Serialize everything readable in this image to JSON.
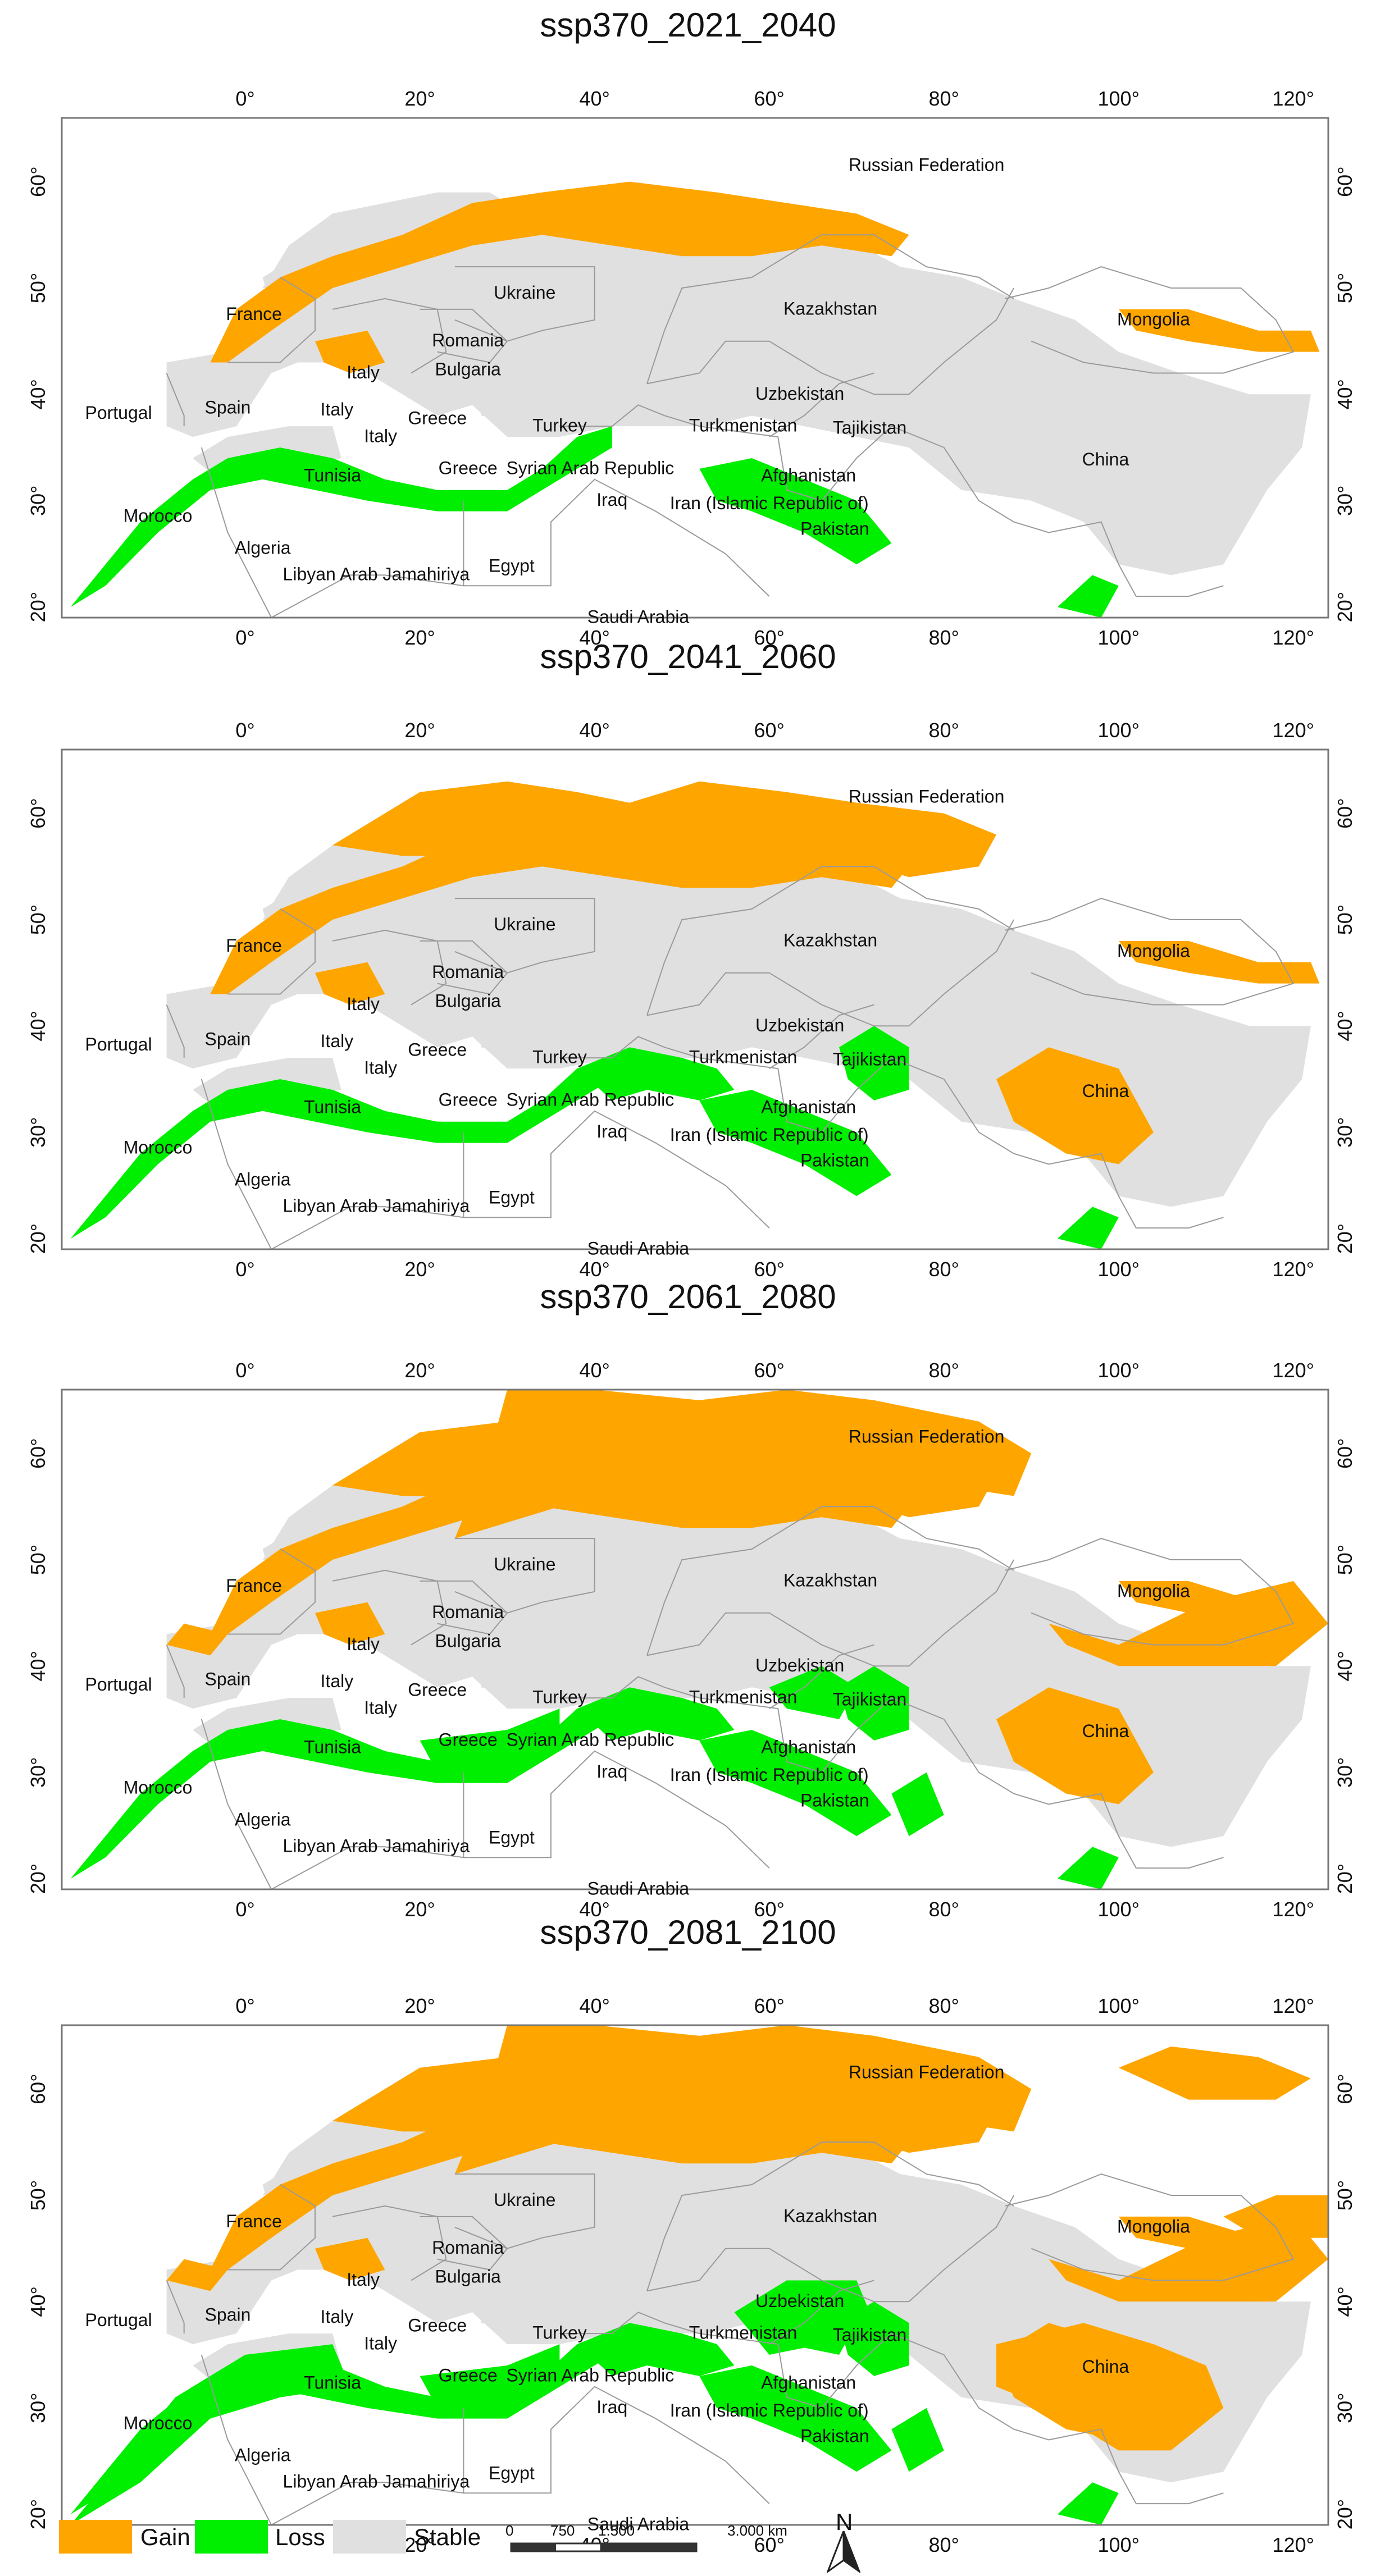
{
  "colors": {
    "gain": "#FFA500",
    "loss": "#00EE00",
    "stable": "#E0E0E0",
    "border": "#9a9a9a",
    "frame": "#777777"
  },
  "axes": {
    "lon_ticks": [
      "0",
      "20",
      "40",
      "60",
      "80",
      "100",
      "120"
    ],
    "lat_ticks": [
      "20",
      "30",
      "40",
      "50",
      "60"
    ],
    "lon_range": [
      -21,
      124
    ],
    "lat_range": [
      19,
      66
    ],
    "tick_suffix": "°"
  },
  "countries": [
    {
      "label": "Russian Federation",
      "lon": 78,
      "lat": 61
    },
    {
      "label": "Ukraine",
      "lon": 32,
      "lat": 49
    },
    {
      "label": "Kazakhstan",
      "lon": 67,
      "lat": 47.5
    },
    {
      "label": "Mongolia",
      "lon": 104,
      "lat": 46.5
    },
    {
      "label": "France",
      "lon": 1,
      "lat": 47
    },
    {
      "label": "Romania",
      "lon": 25.5,
      "lat": 44.5
    },
    {
      "label": "Bulgaria",
      "lon": 25.5,
      "lat": 41.8
    },
    {
      "label": "Italy",
      "lon": 13.5,
      "lat": 41.5
    },
    {
      "label": "Italy",
      "lon": 10.5,
      "lat": 38
    },
    {
      "label": "Italy",
      "lon": 15.5,
      "lat": 35.5
    },
    {
      "label": "Portugal",
      "lon": -14.5,
      "lat": 37.7
    },
    {
      "label": "Spain",
      "lon": -2,
      "lat": 38.2
    },
    {
      "label": "Greece",
      "lon": 22,
      "lat": 37.2
    },
    {
      "label": "Greece",
      "lon": 25.5,
      "lat": 32.5
    },
    {
      "label": "Turkey",
      "lon": 36,
      "lat": 36.5
    },
    {
      "label": "Uzbekistan",
      "lon": 63.5,
      "lat": 39.5
    },
    {
      "label": "Turkmenistan",
      "lon": 57,
      "lat": 36.5
    },
    {
      "label": "Tajikistan",
      "lon": 71.5,
      "lat": 36.3
    },
    {
      "label": "China",
      "lon": 98.5,
      "lat": 33.3
    },
    {
      "label": "Syrian Arab Republic",
      "lon": 39.5,
      "lat": 32.5
    },
    {
      "label": "Afghanistan",
      "lon": 64.5,
      "lat": 31.8
    },
    {
      "label": "Iraq",
      "lon": 42,
      "lat": 29.5
    },
    {
      "label": "Iran (Islamic Republic of)",
      "lon": 60,
      "lat": 29.2
    },
    {
      "label": "Pakistan",
      "lon": 67.5,
      "lat": 26.8
    },
    {
      "label": "Morocco",
      "lon": -10,
      "lat": 28
    },
    {
      "label": "Tunisia",
      "lon": 10,
      "lat": 31.8
    },
    {
      "label": "Algeria",
      "lon": 2,
      "lat": 25
    },
    {
      "label": "Libyan Arab Jamahiriya",
      "lon": 15,
      "lat": 22.5
    },
    {
      "label": "Egypt",
      "lon": 30.5,
      "lat": 23.3
    },
    {
      "label": "Saudi Arabia",
      "lon": 45,
      "lat": 18.5
    }
  ],
  "panels": [
    {
      "title": "ssp370_2021_2040",
      "gain_extent": 0.25,
      "loss_extent": 0.25
    },
    {
      "title": "ssp370_2041_2060",
      "gain_extent": 0.45,
      "loss_extent": 0.35
    },
    {
      "title": "ssp370_2061_2080",
      "gain_extent": 0.75,
      "loss_extent": 0.55
    },
    {
      "title": "ssp370_2081_2100",
      "gain_extent": 1.0,
      "loss_extent": 0.8
    }
  ],
  "legend": {
    "items": [
      {
        "label": "Gain",
        "key": "gain"
      },
      {
        "label": "Loss",
        "key": "loss"
      },
      {
        "label": "Stable",
        "key": "stable"
      }
    ],
    "scalebar": [
      "0",
      "750",
      "1.500",
      "3.000 km"
    ],
    "north": "N"
  }
}
